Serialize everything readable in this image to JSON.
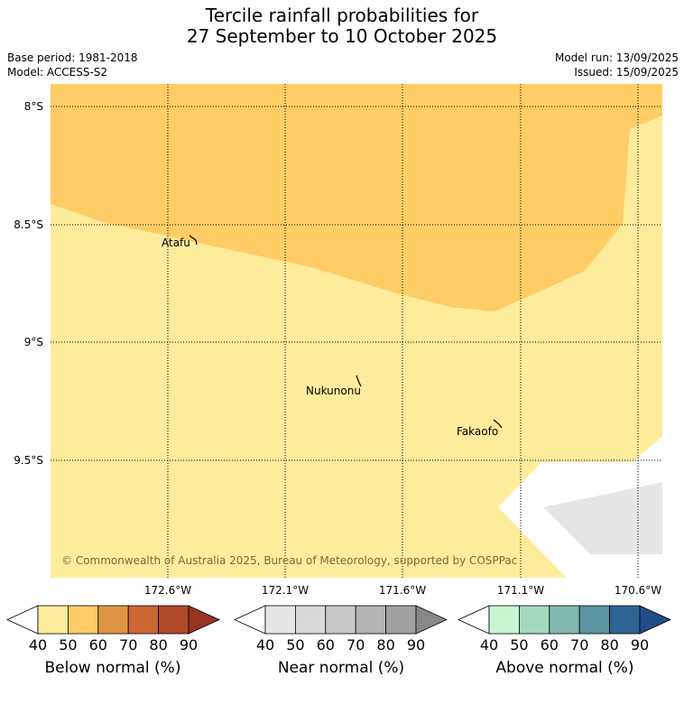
{
  "title": {
    "line1": "Tercile rainfall probabilities for",
    "line2": "27 September to 10 October 2025"
  },
  "meta": {
    "base_period": "Base period: 1981-2018",
    "model": "Model: ACCESS-S2",
    "model_run": "Model run: 13/09/2025",
    "issued": "Issued: 15/09/2025"
  },
  "map": {
    "lat_labels": [
      "8°S",
      "8.5°S",
      "9°S",
      "9.5°S"
    ],
    "lon_labels": [
      "172.6°W",
      "172.1°W",
      "171.6°W",
      "171.1°W",
      "170.6°W"
    ],
    "places": [
      "Atafu",
      "Nukunonu",
      "Fakaofo"
    ],
    "credit": "© Commonwealth of Australia 2025, Bureau of Meteorology, supported by COSPPac",
    "gridlines": true
  },
  "colors": {
    "below_40": "#ffeb9c",
    "below_50": "#ffcc66",
    "near_50": "#e6e6e6",
    "no_data": "#ffffff"
  },
  "colorbars": [
    {
      "title": "Below normal (%)",
      "ticks": [
        "40",
        "50",
        "60",
        "70",
        "80",
        "90"
      ],
      "colors": [
        "#ffffff",
        "#ffeb9c",
        "#ffcc66",
        "#e09545",
        "#cc6633",
        "#b04a2a",
        "#993322"
      ]
    },
    {
      "title": "Near normal (%)",
      "ticks": [
        "40",
        "50",
        "60",
        "70",
        "80",
        "90"
      ],
      "colors": [
        "#ffffff",
        "#e6e6e6",
        "#d9d9d9",
        "#c8c8c8",
        "#b4b4b4",
        "#a0a0a0",
        "#888888"
      ]
    },
    {
      "title": "Above normal (%)",
      "ticks": [
        "40",
        "50",
        "60",
        "70",
        "80",
        "90"
      ],
      "colors": [
        "#ffffff",
        "#c8f5d0",
        "#a4d9c0",
        "#80b8b0",
        "#5a94a0",
        "#2e6496",
        "#1f4e8a"
      ]
    }
  ]
}
